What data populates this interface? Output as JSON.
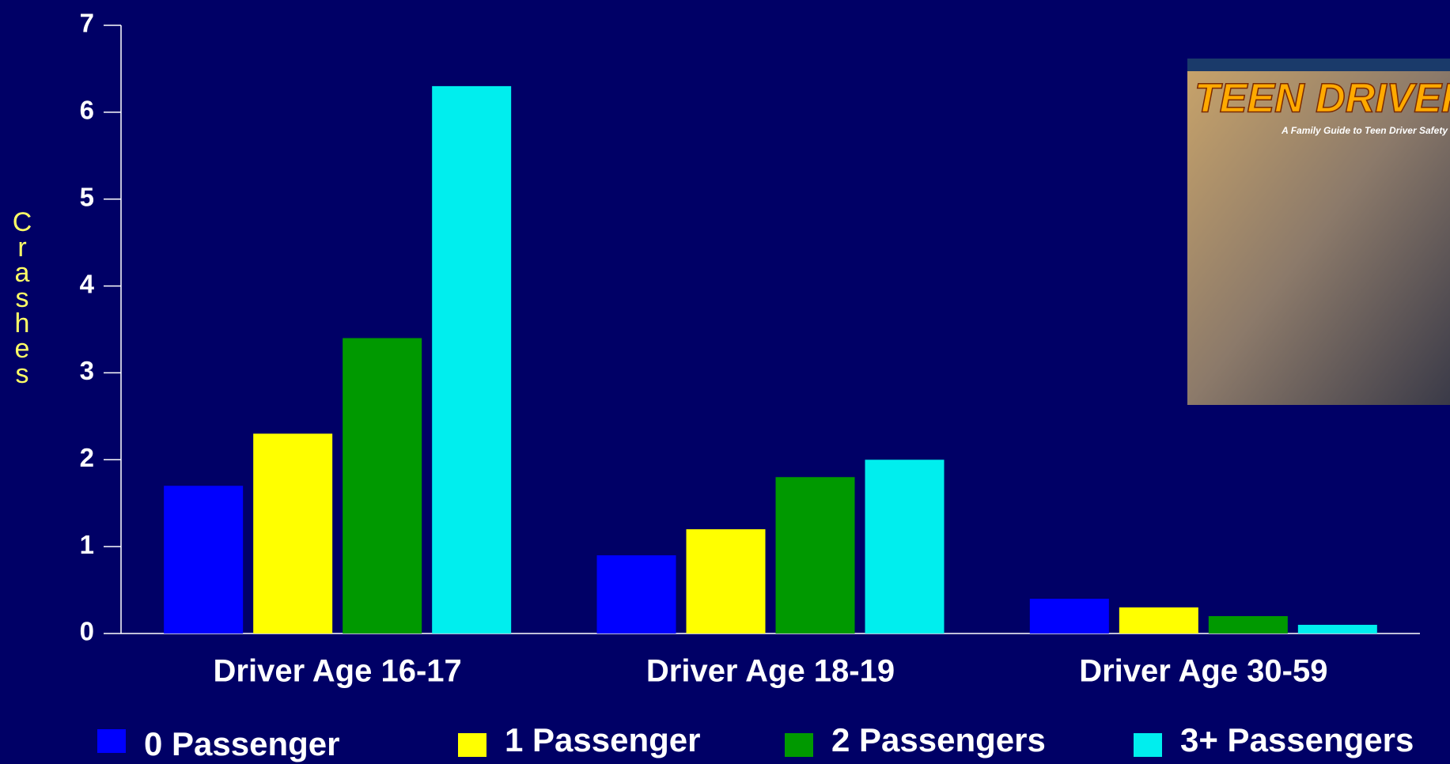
{
  "chart_data": {
    "type": "bar",
    "y_label": "Crashes",
    "categories": [
      "Driver Age 16-17",
      "Driver Age 18-19",
      "Driver Age 30-59"
    ],
    "series": [
      {
        "name": "0 Passenger",
        "color": "#0000ff",
        "values": [
          1.7,
          0.9,
          0.4
        ]
      },
      {
        "name": "1 Passenger",
        "color": "#ffff00",
        "values": [
          2.3,
          1.2,
          0.3
        ]
      },
      {
        "name": "2 Passengers",
        "color": "#009900",
        "values": [
          3.4,
          1.8,
          0.2
        ]
      },
      {
        "name": "3+ Passengers",
        "color": "#00eeee",
        "values": [
          6.3,
          2.0,
          0.1
        ]
      }
    ],
    "ylim": [
      0,
      7
    ],
    "yticks": [
      0,
      1,
      2,
      3,
      4,
      5,
      6,
      7
    ]
  },
  "inset": {
    "title": "TEEN DRIVER",
    "subtitle": "A Family Guide to Teen Driver Safety"
  }
}
